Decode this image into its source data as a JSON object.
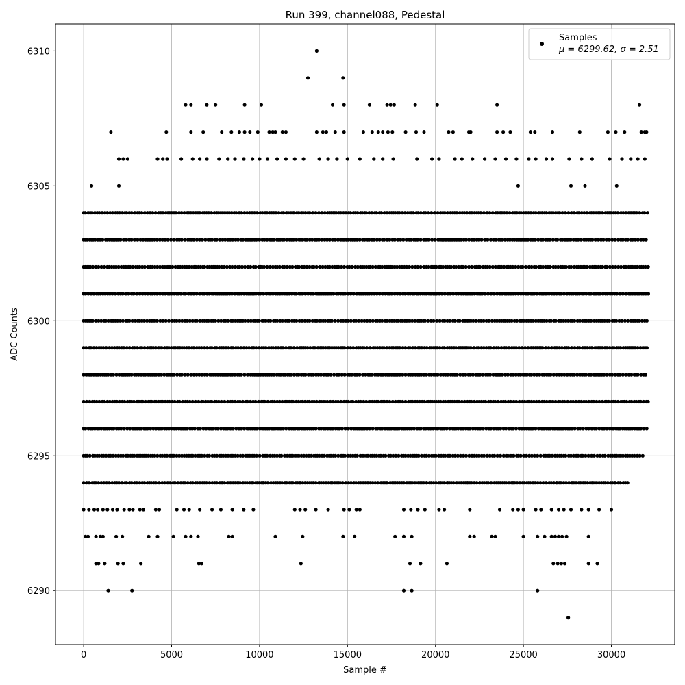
{
  "chart_data": {
    "type": "scatter",
    "title": "Run 399, channel088, Pedestal",
    "xlabel": "Sample #",
    "ylabel": "ADC Counts",
    "xlim": [
      -1600,
      33600
    ],
    "ylim": [
      6288,
      6311
    ],
    "xticks": [
      0,
      5000,
      10000,
      15000,
      20000,
      25000,
      30000
    ],
    "yticks": [
      6290,
      6295,
      6300,
      6305,
      6310
    ],
    "grid": true,
    "legend": {
      "placement": "top-right",
      "series_label": "Samples",
      "stats_label": "μ = 6299.62, σ = 2.51"
    },
    "series": [
      {
        "name": "Samples",
        "color": "#000000",
        "bands": [
          {
            "y": 6304,
            "x_start": 0,
            "x_end": 32100
          },
          {
            "y": 6303,
            "x_start": 0,
            "x_end": 32100
          },
          {
            "y": 6302,
            "x_start": 0,
            "x_end": 32100
          },
          {
            "y": 6301,
            "x_start": 0,
            "x_end": 32100
          },
          {
            "y": 6300,
            "x_start": 0,
            "x_end": 32100
          },
          {
            "y": 6299,
            "x_start": 0,
            "x_end": 32100
          },
          {
            "y": 6298,
            "x_start": 0,
            "x_end": 32100
          },
          {
            "y": 6297,
            "x_start": 0,
            "x_end": 32100
          },
          {
            "y": 6296,
            "x_start": 0,
            "x_end": 32100
          },
          {
            "y": 6295,
            "x_start": 0,
            "x_end": 31900
          },
          {
            "y": 6294,
            "x_start": 0,
            "x_end": 31000
          }
        ],
        "points": [
          [
            13250,
            6310
          ],
          [
            12750,
            6309
          ],
          [
            14750,
            6309
          ],
          [
            5800,
            6308
          ],
          [
            6100,
            6308
          ],
          [
            7000,
            6308
          ],
          [
            7500,
            6308
          ],
          [
            9150,
            6308
          ],
          [
            10100,
            6308
          ],
          [
            14150,
            6308
          ],
          [
            14800,
            6308
          ],
          [
            16250,
            6308
          ],
          [
            17250,
            6308
          ],
          [
            17450,
            6308
          ],
          [
            17650,
            6308
          ],
          [
            18850,
            6308
          ],
          [
            20100,
            6308
          ],
          [
            23500,
            6308
          ],
          [
            31600,
            6308
          ],
          [
            1550,
            6307
          ],
          [
            4700,
            6307
          ],
          [
            6100,
            6307
          ],
          [
            6800,
            6307
          ],
          [
            7850,
            6307
          ],
          [
            8400,
            6307
          ],
          [
            8850,
            6307
          ],
          [
            9150,
            6307
          ],
          [
            9450,
            6307
          ],
          [
            9900,
            6307
          ],
          [
            10550,
            6307
          ],
          [
            10750,
            6307
          ],
          [
            10900,
            6307
          ],
          [
            11300,
            6307
          ],
          [
            11500,
            6307
          ],
          [
            13250,
            6307
          ],
          [
            13600,
            6307
          ],
          [
            13800,
            6307
          ],
          [
            14300,
            6307
          ],
          [
            14800,
            6307
          ],
          [
            15900,
            6307
          ],
          [
            16400,
            6307
          ],
          [
            16750,
            6307
          ],
          [
            17000,
            6307
          ],
          [
            17300,
            6307
          ],
          [
            17550,
            6307
          ],
          [
            18300,
            6307
          ],
          [
            18900,
            6307
          ],
          [
            19350,
            6307
          ],
          [
            20750,
            6307
          ],
          [
            21000,
            6307
          ],
          [
            21900,
            6307
          ],
          [
            22000,
            6307
          ],
          [
            23500,
            6307
          ],
          [
            23850,
            6307
          ],
          [
            24250,
            6307
          ],
          [
            25400,
            6307
          ],
          [
            25650,
            6307
          ],
          [
            26650,
            6307
          ],
          [
            28200,
            6307
          ],
          [
            29800,
            6307
          ],
          [
            30250,
            6307
          ],
          [
            30750,
            6307
          ],
          [
            31700,
            6307
          ],
          [
            31900,
            6307
          ],
          [
            32000,
            6307
          ],
          [
            2000,
            6306
          ],
          [
            2250,
            6306
          ],
          [
            2500,
            6306
          ],
          [
            4200,
            6306
          ],
          [
            4500,
            6306
          ],
          [
            4750,
            6306
          ],
          [
            5550,
            6306
          ],
          [
            6200,
            6306
          ],
          [
            6600,
            6306
          ],
          [
            7000,
            6306
          ],
          [
            7700,
            6306
          ],
          [
            8200,
            6306
          ],
          [
            8600,
            6306
          ],
          [
            9100,
            6306
          ],
          [
            9600,
            6306
          ],
          [
            10000,
            6306
          ],
          [
            10450,
            6306
          ],
          [
            11000,
            6306
          ],
          [
            11500,
            6306
          ],
          [
            12000,
            6306
          ],
          [
            12500,
            6306
          ],
          [
            13400,
            6306
          ],
          [
            13900,
            6306
          ],
          [
            14400,
            6306
          ],
          [
            15000,
            6306
          ],
          [
            15700,
            6306
          ],
          [
            16500,
            6306
          ],
          [
            17000,
            6306
          ],
          [
            17600,
            6306
          ],
          [
            18950,
            6306
          ],
          [
            19800,
            6306
          ],
          [
            20200,
            6306
          ],
          [
            21100,
            6306
          ],
          [
            21500,
            6306
          ],
          [
            22100,
            6306
          ],
          [
            22800,
            6306
          ],
          [
            23400,
            6306
          ],
          [
            24000,
            6306
          ],
          [
            24600,
            6306
          ],
          [
            25300,
            6306
          ],
          [
            25700,
            6306
          ],
          [
            26300,
            6306
          ],
          [
            26650,
            6306
          ],
          [
            27600,
            6306
          ],
          [
            28300,
            6306
          ],
          [
            28900,
            6306
          ],
          [
            29900,
            6306
          ],
          [
            30600,
            6306
          ],
          [
            31100,
            6306
          ],
          [
            31500,
            6306
          ],
          [
            31900,
            6306
          ],
          [
            450,
            6305
          ],
          [
            2000,
            6305
          ],
          [
            24700,
            6305
          ],
          [
            27700,
            6305
          ],
          [
            28500,
            6305
          ],
          [
            30300,
            6305
          ],
          [
            2000,
            6294
          ],
          [
            5200,
            6294
          ],
          [
            7900,
            6294
          ],
          [
            8800,
            6294
          ],
          [
            9600,
            6294
          ],
          [
            10200,
            6294
          ],
          [
            11500,
            6294
          ],
          [
            12300,
            6294
          ],
          [
            13400,
            6294
          ],
          [
            14100,
            6294
          ],
          [
            16200,
            6294
          ],
          [
            17200,
            6294
          ],
          [
            18600,
            6294
          ],
          [
            19500,
            6294
          ],
          [
            20700,
            6294
          ],
          [
            21800,
            6294
          ],
          [
            23000,
            6294
          ],
          [
            24400,
            6294
          ],
          [
            25600,
            6294
          ],
          [
            26900,
            6294
          ],
          [
            27800,
            6294
          ],
          [
            28900,
            6294
          ],
          [
            30200,
            6294
          ],
          [
            0,
            6293
          ],
          [
            300,
            6293
          ],
          [
            600,
            6293
          ],
          [
            800,
            6293
          ],
          [
            1100,
            6293
          ],
          [
            1350,
            6293
          ],
          [
            1650,
            6293
          ],
          [
            1900,
            6293
          ],
          [
            2300,
            6293
          ],
          [
            2600,
            6293
          ],
          [
            2800,
            6293
          ],
          [
            3200,
            6293
          ],
          [
            3400,
            6293
          ],
          [
            4100,
            6293
          ],
          [
            4300,
            6293
          ],
          [
            5300,
            6293
          ],
          [
            5700,
            6293
          ],
          [
            6000,
            6293
          ],
          [
            6600,
            6293
          ],
          [
            7300,
            6293
          ],
          [
            7800,
            6293
          ],
          [
            8450,
            6293
          ],
          [
            9100,
            6293
          ],
          [
            9650,
            6293
          ],
          [
            12000,
            6293
          ],
          [
            12300,
            6293
          ],
          [
            12600,
            6293
          ],
          [
            13200,
            6293
          ],
          [
            13900,
            6293
          ],
          [
            14800,
            6293
          ],
          [
            15100,
            6293
          ],
          [
            15500,
            6293
          ],
          [
            15700,
            6293
          ],
          [
            18200,
            6293
          ],
          [
            18600,
            6293
          ],
          [
            19000,
            6293
          ],
          [
            19400,
            6293
          ],
          [
            20200,
            6293
          ],
          [
            20500,
            6293
          ],
          [
            21950,
            6293
          ],
          [
            23650,
            6293
          ],
          [
            24400,
            6293
          ],
          [
            24700,
            6293
          ],
          [
            25000,
            6293
          ],
          [
            25700,
            6293
          ],
          [
            26000,
            6293
          ],
          [
            26600,
            6293
          ],
          [
            27000,
            6293
          ],
          [
            27300,
            6293
          ],
          [
            27700,
            6293
          ],
          [
            28300,
            6293
          ],
          [
            28700,
            6293
          ],
          [
            29300,
            6293
          ],
          [
            30000,
            6293
          ],
          [
            100,
            6292
          ],
          [
            250,
            6292
          ],
          [
            700,
            6292
          ],
          [
            950,
            6292
          ],
          [
            1100,
            6292
          ],
          [
            1850,
            6292
          ],
          [
            2200,
            6292
          ],
          [
            3700,
            6292
          ],
          [
            4200,
            6292
          ],
          [
            5100,
            6292
          ],
          [
            5800,
            6292
          ],
          [
            6100,
            6292
          ],
          [
            6500,
            6292
          ],
          [
            8250,
            6292
          ],
          [
            8450,
            6292
          ],
          [
            10900,
            6292
          ],
          [
            12450,
            6292
          ],
          [
            14750,
            6292
          ],
          [
            15400,
            6292
          ],
          [
            17700,
            6292
          ],
          [
            18200,
            6292
          ],
          [
            18650,
            6292
          ],
          [
            21950,
            6292
          ],
          [
            22200,
            6292
          ],
          [
            23200,
            6292
          ],
          [
            23400,
            6292
          ],
          [
            25000,
            6292
          ],
          [
            25800,
            6292
          ],
          [
            26200,
            6292
          ],
          [
            26600,
            6292
          ],
          [
            26800,
            6292
          ],
          [
            27000,
            6292
          ],
          [
            27200,
            6292
          ],
          [
            27450,
            6292
          ],
          [
            28700,
            6292
          ],
          [
            700,
            6291
          ],
          [
            850,
            6291
          ],
          [
            1200,
            6291
          ],
          [
            1950,
            6291
          ],
          [
            2250,
            6291
          ],
          [
            3250,
            6291
          ],
          [
            6550,
            6291
          ],
          [
            6700,
            6291
          ],
          [
            12350,
            6291
          ],
          [
            18550,
            6291
          ],
          [
            19150,
            6291
          ],
          [
            20650,
            6291
          ],
          [
            26700,
            6291
          ],
          [
            26950,
            6291
          ],
          [
            27150,
            6291
          ],
          [
            27350,
            6291
          ],
          [
            28700,
            6291
          ],
          [
            29200,
            6291
          ],
          [
            1400,
            6290
          ],
          [
            2750,
            6290
          ],
          [
            18200,
            6290
          ],
          [
            18650,
            6290
          ],
          [
            25800,
            6290
          ],
          [
            27550,
            6289
          ]
        ]
      }
    ]
  }
}
